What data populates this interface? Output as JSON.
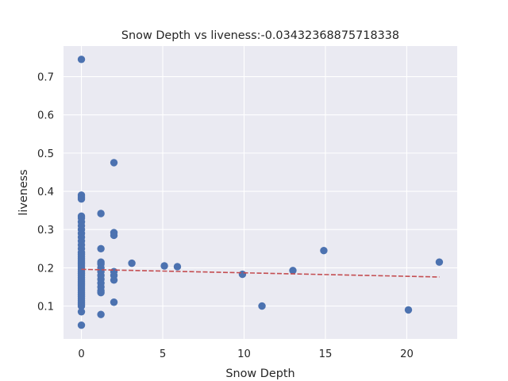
{
  "chart_data": {
    "type": "scatter",
    "title": "Snow Depth vs liveness:-0.03432368875718338",
    "xlabel": "Snow Depth",
    "ylabel": "liveness",
    "xlim": [
      -1.1,
      23.1
    ],
    "ylim": [
      0.014,
      0.78
    ],
    "xticks": [
      0,
      5,
      10,
      15,
      20
    ],
    "xtick_labels": [
      "0",
      "5",
      "10",
      "15",
      "20"
    ],
    "yticks": [
      0.1,
      0.2,
      0.3,
      0.4,
      0.5,
      0.6,
      0.7
    ],
    "ytick_labels": [
      "0.1",
      "0.2",
      "0.3",
      "0.4",
      "0.5",
      "0.6",
      "0.7"
    ],
    "grid": true,
    "legend": "none",
    "point_color": "#4c72b0",
    "trend_color": "#c44e52",
    "background_color": "#eaeaf2",
    "points": [
      [
        0,
        0.745
      ],
      [
        0,
        0.39
      ],
      [
        0,
        0.385
      ],
      [
        0,
        0.38
      ],
      [
        0,
        0.335
      ],
      [
        0,
        0.33
      ],
      [
        0,
        0.32
      ],
      [
        0,
        0.31
      ],
      [
        0,
        0.3
      ],
      [
        0,
        0.29
      ],
      [
        0,
        0.28
      ],
      [
        0,
        0.27
      ],
      [
        0,
        0.26
      ],
      [
        0,
        0.25
      ],
      [
        0,
        0.24
      ],
      [
        0,
        0.235
      ],
      [
        0,
        0.23
      ],
      [
        0,
        0.225
      ],
      [
        0,
        0.22
      ],
      [
        0,
        0.215
      ],
      [
        0,
        0.21
      ],
      [
        0,
        0.205
      ],
      [
        0,
        0.2
      ],
      [
        0,
        0.195
      ],
      [
        0,
        0.19
      ],
      [
        0,
        0.185
      ],
      [
        0,
        0.18
      ],
      [
        0,
        0.175
      ],
      [
        0,
        0.17
      ],
      [
        0,
        0.165
      ],
      [
        0,
        0.16
      ],
      [
        0,
        0.155
      ],
      [
        0,
        0.15
      ],
      [
        0,
        0.145
      ],
      [
        0,
        0.14
      ],
      [
        0,
        0.135
      ],
      [
        0,
        0.13
      ],
      [
        0,
        0.125
      ],
      [
        0,
        0.12
      ],
      [
        0,
        0.115
      ],
      [
        0,
        0.11
      ],
      [
        0,
        0.105
      ],
      [
        0,
        0.1
      ],
      [
        0,
        0.085
      ],
      [
        0,
        0.05
      ],
      [
        1.2,
        0.342
      ],
      [
        1.2,
        0.25
      ],
      [
        1.2,
        0.215
      ],
      [
        1.2,
        0.21
      ],
      [
        1.2,
        0.2
      ],
      [
        1.2,
        0.19
      ],
      [
        1.2,
        0.18
      ],
      [
        1.2,
        0.17
      ],
      [
        1.2,
        0.16
      ],
      [
        1.2,
        0.15
      ],
      [
        1.2,
        0.14
      ],
      [
        1.2,
        0.135
      ],
      [
        1.2,
        0.078
      ],
      [
        2,
        0.475
      ],
      [
        2,
        0.292
      ],
      [
        2,
        0.285
      ],
      [
        2,
        0.19
      ],
      [
        2,
        0.18
      ],
      [
        2,
        0.168
      ],
      [
        2,
        0.11
      ],
      [
        3.1,
        0.212
      ],
      [
        5.1,
        0.205
      ],
      [
        5.9,
        0.203
      ],
      [
        9.9,
        0.183
      ],
      [
        11.1,
        0.1
      ],
      [
        13,
        0.193
      ],
      [
        14.9,
        0.245
      ],
      [
        20.1,
        0.09
      ],
      [
        22,
        0.215
      ]
    ],
    "trend_line": {
      "x": [
        0,
        22
      ],
      "y": [
        0.196,
        0.176
      ]
    }
  }
}
